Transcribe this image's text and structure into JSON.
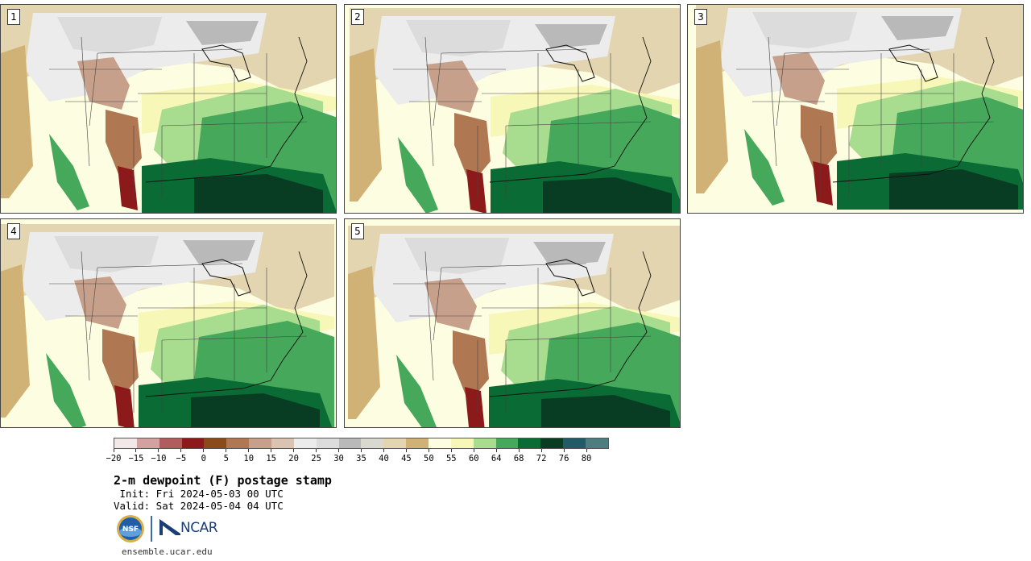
{
  "panels": [
    {
      "label": "1"
    },
    {
      "label": "2"
    },
    {
      "label": "3"
    },
    {
      "label": "4"
    },
    {
      "label": "5"
    }
  ],
  "colorbar": {
    "colors": [
      "#f3e8e8",
      "#d4a1a1",
      "#b25d5d",
      "#8c1a1a",
      "#8a4a1a",
      "#b07852",
      "#c6a08a",
      "#dbc3b2",
      "#ececec",
      "#dcdcdc",
      "#b9b9b9",
      "#d9d9d0",
      "#e3d5b0",
      "#d1b276",
      "#fdfde2",
      "#f7f7b7",
      "#a8dc8e",
      "#46a85a",
      "#0a6b34",
      "#083d24",
      "#225a66",
      "#4e7d80"
    ],
    "tick_labels": [
      "−20",
      "−15",
      "−10",
      "−5",
      "0",
      "5",
      "10",
      "15",
      "20",
      "25",
      "30",
      "35",
      "40",
      "45",
      "50",
      "55",
      "60",
      "64",
      "68",
      "72",
      "76",
      "80"
    ]
  },
  "title": "2-m dewpoint (F) postage stamp",
  "init_line": " Init: Fri 2024-05-03 00 UTC",
  "valid_line": "Valid: Sat 2024-05-04 04 UTC",
  "logos": {
    "nsf": "NSF",
    "ncar": "NCAR"
  },
  "footer": "ensemble.ucar.edu"
}
